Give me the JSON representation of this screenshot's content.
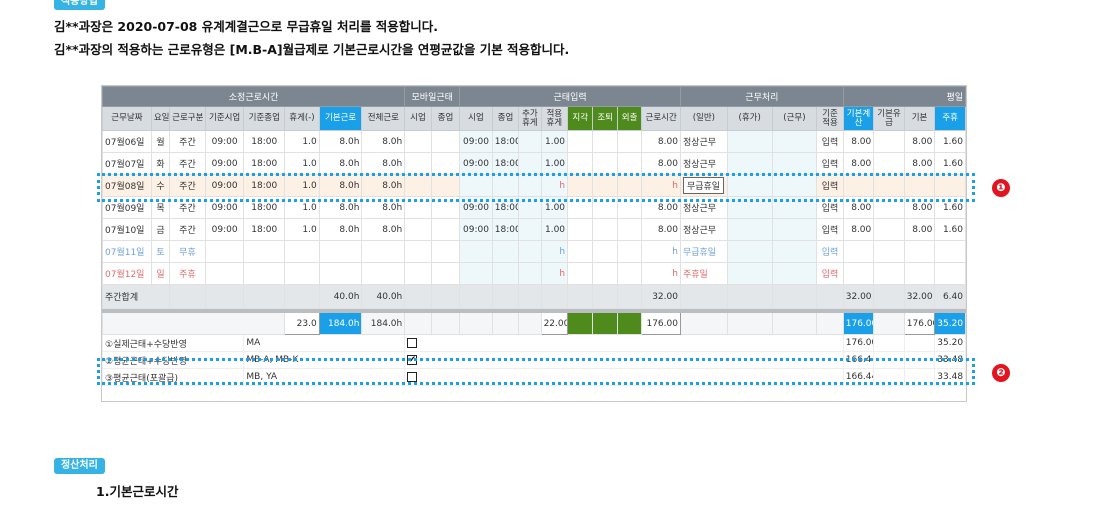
{
  "tag_apply": "적용방법",
  "tag_settle": "정산처리",
  "line1": "김**과장은 2020-07-08 유계계결근으로 무급휴일 처리를 적용합니다.",
  "line2": "김**과장의 적용하는 근로유형은 [M.B-A]월급제로 기본근로시간을 연평균값을 기본 적용합니다.",
  "heading_basic": "1.기본근로시간",
  "callouts": [
    "❶",
    "❷"
  ],
  "groups": [
    "소정근로시간",
    "모바일근태",
    "근태입력",
    "근무처리",
    "평일"
  ],
  "cols": [
    "근무날짜",
    "요일",
    "근로구분",
    "기준시업",
    "기준종업",
    "휴게(-)",
    "기본근로",
    "전체근로",
    "시업",
    "종업",
    "시업",
    "종업",
    "추가휴게",
    "적용휴게",
    "지각",
    "조퇴",
    "외출",
    "근로시간",
    "(일반)",
    "(휴가)",
    "(근무)",
    "기준적용",
    "기본계산",
    "기본유급",
    "기본",
    "주휴"
  ],
  "rows": [
    [
      "07월06일",
      "월",
      "주간",
      "09:00",
      "18:00",
      "1.0",
      "8.0h",
      "8.0h",
      "",
      "",
      "09:00",
      "18:00",
      "",
      "1.00",
      "",
      "",
      "",
      "8.00",
      "정상근무",
      "",
      "",
      "입력",
      "8.00",
      "",
      "8.00",
      "1.60"
    ],
    [
      "07월07일",
      "화",
      "주간",
      "09:00",
      "18:00",
      "1.0",
      "8.0h",
      "8.0h",
      "",
      "",
      "09:00",
      "18:00",
      "",
      "1.00",
      "",
      "",
      "",
      "8.00",
      "정상근무",
      "",
      "",
      "입력",
      "8.00",
      "",
      "8.00",
      "1.60"
    ],
    [
      "07월08일",
      "수",
      "주간",
      "09:00",
      "18:00",
      "1.0",
      "8.0h",
      "8.0h",
      "",
      "",
      "",
      "",
      "",
      "h",
      "",
      "",
      "",
      "h",
      "무급휴일",
      "",
      "",
      "입력",
      "",
      "",
      "",
      ""
    ],
    [
      "07월09일",
      "목",
      "주간",
      "09:00",
      "18:00",
      "1.0",
      "8.0h",
      "8.0h",
      "",
      "",
      "09:00",
      "18:00",
      "",
      "1.00",
      "",
      "",
      "",
      "8.00",
      "정상근무",
      "",
      "",
      "입력",
      "8.00",
      "",
      "8.00",
      "1.60"
    ],
    [
      "07월10일",
      "금",
      "주간",
      "09:00",
      "18:00",
      "1.0",
      "8.0h",
      "8.0h",
      "",
      "",
      "09:00",
      "18:00",
      "",
      "1.00",
      "",
      "",
      "",
      "8.00",
      "정상근무",
      "",
      "",
      "입력",
      "8.00",
      "",
      "8.00",
      "1.60"
    ],
    [
      "07월11일",
      "토",
      "무휴",
      "",
      "",
      "",
      "",
      "",
      "",
      "",
      "",
      "",
      "",
      "h",
      "",
      "",
      "",
      "h",
      "무급휴일",
      "",
      "",
      "입력",
      "",
      "",
      "",
      ""
    ],
    [
      "07월12일",
      "일",
      "주휴",
      "",
      "",
      "",
      "",
      "",
      "",
      "",
      "",
      "",
      "",
      "h",
      "",
      "",
      "",
      "h",
      "주휴일",
      "",
      "",
      "입력",
      "",
      "",
      "",
      ""
    ]
  ],
  "weekly": {
    "label": "주간합계",
    "basic": "40.0h",
    "total": "40.0h",
    "hours": "32.00",
    "calc": "32.00",
    "base": "32.00",
    "holiday": "6.40"
  },
  "totals": {
    "rest": "23.0",
    "basic": "184.0h",
    "total": "184.0h",
    "apply": "22.00",
    "hours": "176.00",
    "calc": "176.00",
    "paid": "176.00",
    "holiday": "35.20"
  },
  "options": [
    {
      "name": "①실제근태+수당반영",
      "type": "MA",
      "checked": false,
      "check_mark": "",
      "calc": "176.00",
      "holiday": "35.20"
    },
    {
      "name": "②평균근태+수당반영",
      "type": "MB-A, MB-K",
      "checked": true,
      "check_mark": "✔",
      "calc": "166.44",
      "holiday": "33.48"
    },
    {
      "name": "③평균근태(포괄급)",
      "type": "MB, YA",
      "checked": false,
      "check_mark": "",
      "calc": "166.44",
      "holiday": "33.48"
    }
  ],
  "colors": {
    "tag": "#34b3e4",
    "header_dark": "#7c8690",
    "header_light": "#d7dce1",
    "blue": "#1aa0e8",
    "green": "#4e8a1c",
    "dotted": "#1aa0e8",
    "callout": "#e1141f",
    "highlight_row": "#fdf0e4"
  }
}
